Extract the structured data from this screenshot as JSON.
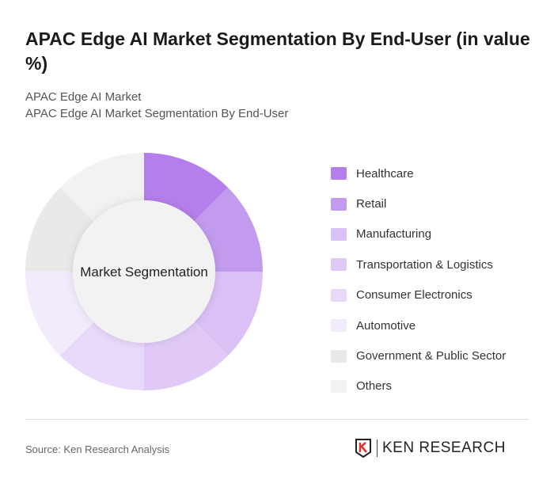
{
  "title": "APAC Edge AI Market Segmentation By End-User (in value %)",
  "subtitle1": "APAC Edge AI Market",
  "subtitle2": "APAC Edge AI Market Segmentation By End-User",
  "source": "Source: Ken Research Analysis",
  "logo_text": "KEN RESEARCH",
  "chart_data": {
    "type": "pie",
    "variant": "donut",
    "center_label": "Market Segmentation",
    "legend_position": "right",
    "categories": [
      "Healthcare",
      "Retail",
      "Manufacturing",
      "Transportation & Logistics",
      "Consumer Electronics",
      "Automotive",
      "Government & Public Sector",
      "Others"
    ],
    "values": [
      12.5,
      12.5,
      12.5,
      12.5,
      12.5,
      12.5,
      12.5,
      12.5
    ],
    "colors": [
      "#b47fea",
      "#c39bee",
      "#dac0f5",
      "#e0c9f7",
      "#e8d8f9",
      "#f2ebfc",
      "#e9e9e9",
      "#f2f2f2"
    ]
  }
}
